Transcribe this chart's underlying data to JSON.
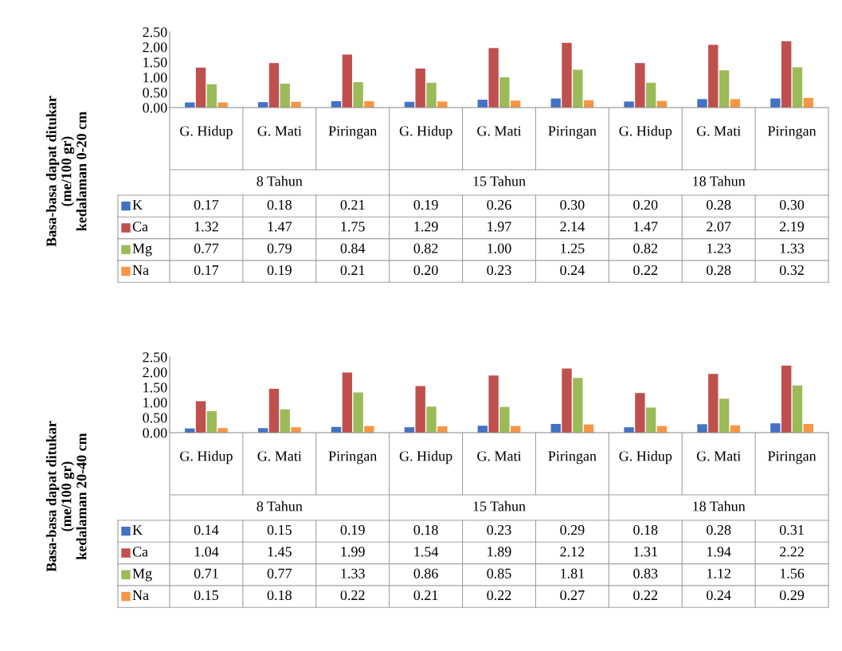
{
  "chart_data": [
    {
      "type": "bar",
      "ylabel": "Basa-basa dapat ditukar\n(me/100 gr)\nkedalaman 0-20 cm",
      "categories": [
        "G. Hidup",
        "G. Mati",
        "Piringan",
        "G. Hidup",
        "G. Mati",
        "Piringan",
        "G. Hidup",
        "G. Mati",
        "Piringan"
      ],
      "annotations": [
        "8 Tahun",
        "15 Tahun",
        "18 Tahun"
      ],
      "ylim": [
        0,
        2.5
      ],
      "yticks": [
        {
          "value": 0,
          "label": "0.00"
        },
        {
          "value": 0.5,
          "label": "0.50"
        },
        {
          "value": 1,
          "label": "1.00"
        },
        {
          "value": 1.5,
          "label": "1.50"
        },
        {
          "value": 2,
          "label": "2.00"
        },
        {
          "value": 2.5,
          "label": "2.50"
        }
      ],
      "legend": "bottom left",
      "grid": false,
      "series": [
        {
          "name": "K",
          "color": "#4472c4",
          "values": [
            0.17,
            0.18,
            0.21,
            0.19,
            0.26,
            0.3,
            0.2,
            0.28,
            0.3
          ],
          "value_labels": [
            "0.17",
            "0.18",
            "0.21",
            "0.19",
            "0.26",
            "0.30",
            "0.20",
            "0.28",
            "0.30"
          ]
        },
        {
          "name": "Ca",
          "color": "#c0504d",
          "values": [
            1.32,
            1.47,
            1.75,
            1.29,
            1.97,
            2.14,
            1.47,
            2.07,
            2.19
          ],
          "value_labels": [
            "1.32",
            "1.47",
            "1.75",
            "1.29",
            "1.97",
            "2.14",
            "1.47",
            "2.07",
            "2.19"
          ]
        },
        {
          "name": "Mg",
          "color": "#9bbb59",
          "values": [
            0.77,
            0.79,
            0.84,
            0.82,
            1.0,
            1.25,
            0.82,
            1.23,
            1.33
          ],
          "value_labels": [
            "0.77",
            "0.79",
            "0.84",
            "0.82",
            "1.00",
            "1.25",
            "0.82",
            "1.23",
            "1.33"
          ]
        },
        {
          "name": "Na",
          "color": "#f79646",
          "values": [
            0.17,
            0.19,
            0.21,
            0.2,
            0.23,
            0.24,
            0.22,
            0.28,
            0.32
          ],
          "value_labels": [
            "0.17",
            "0.19",
            "0.21",
            "0.20",
            "0.23",
            "0.24",
            "0.22",
            "0.28",
            "0.32"
          ]
        }
      ]
    },
    {
      "type": "bar",
      "ylabel": "Basa-basa dapat ditukar\n(me/100 gr)\nkedalaman 20-40 cm",
      "categories": [
        "G. Hidup",
        "G. Mati",
        "Piringan",
        "G. Hidup",
        "G. Mati",
        "Piringan",
        "G. Hidup",
        "G. Mati",
        "Piringan"
      ],
      "annotations": [
        "8 Tahun",
        "15 Tahun",
        "18 Tahun"
      ],
      "ylim": [
        0,
        2.5
      ],
      "yticks": [
        {
          "value": 0,
          "label": "0.00"
        },
        {
          "value": 0.5,
          "label": "0.50"
        },
        {
          "value": 1,
          "label": "1.00"
        },
        {
          "value": 1.5,
          "label": "1.50"
        },
        {
          "value": 2,
          "label": "2.00"
        },
        {
          "value": 2.5,
          "label": "2.50"
        }
      ],
      "legend": "bottom left",
      "grid": false,
      "series": [
        {
          "name": "K",
          "color": "#4472c4",
          "values": [
            0.14,
            0.15,
            0.19,
            0.18,
            0.23,
            0.29,
            0.18,
            0.28,
            0.31
          ],
          "value_labels": [
            "0.14",
            "0.15",
            "0.19",
            "0.18",
            "0.23",
            "0.29",
            "0.18",
            "0.28",
            "0.31"
          ]
        },
        {
          "name": "Ca",
          "color": "#c0504d",
          "values": [
            1.04,
            1.45,
            1.99,
            1.54,
            1.89,
            2.12,
            1.31,
            1.94,
            2.22
          ],
          "value_labels": [
            "1.04",
            "1.45",
            "1.99",
            "1.54",
            "1.89",
            "2.12",
            "1.31",
            "1.94",
            "2.22"
          ]
        },
        {
          "name": "Mg",
          "color": "#9bbb59",
          "values": [
            0.71,
            0.77,
            1.33,
            0.86,
            0.85,
            1.81,
            0.83,
            1.12,
            1.56
          ],
          "value_labels": [
            "0.71",
            "0.77",
            "1.33",
            "0.86",
            "0.85",
            "1.81",
            "0.83",
            "1.12",
            "1.56"
          ]
        },
        {
          "name": "Na",
          "color": "#f79646",
          "values": [
            0.15,
            0.18,
            0.22,
            0.21,
            0.22,
            0.27,
            0.22,
            0.24,
            0.29
          ],
          "value_labels": [
            "0.15",
            "0.18",
            "0.22",
            "0.21",
            "0.22",
            "0.27",
            "0.22",
            "0.24",
            "0.29"
          ]
        }
      ]
    }
  ]
}
